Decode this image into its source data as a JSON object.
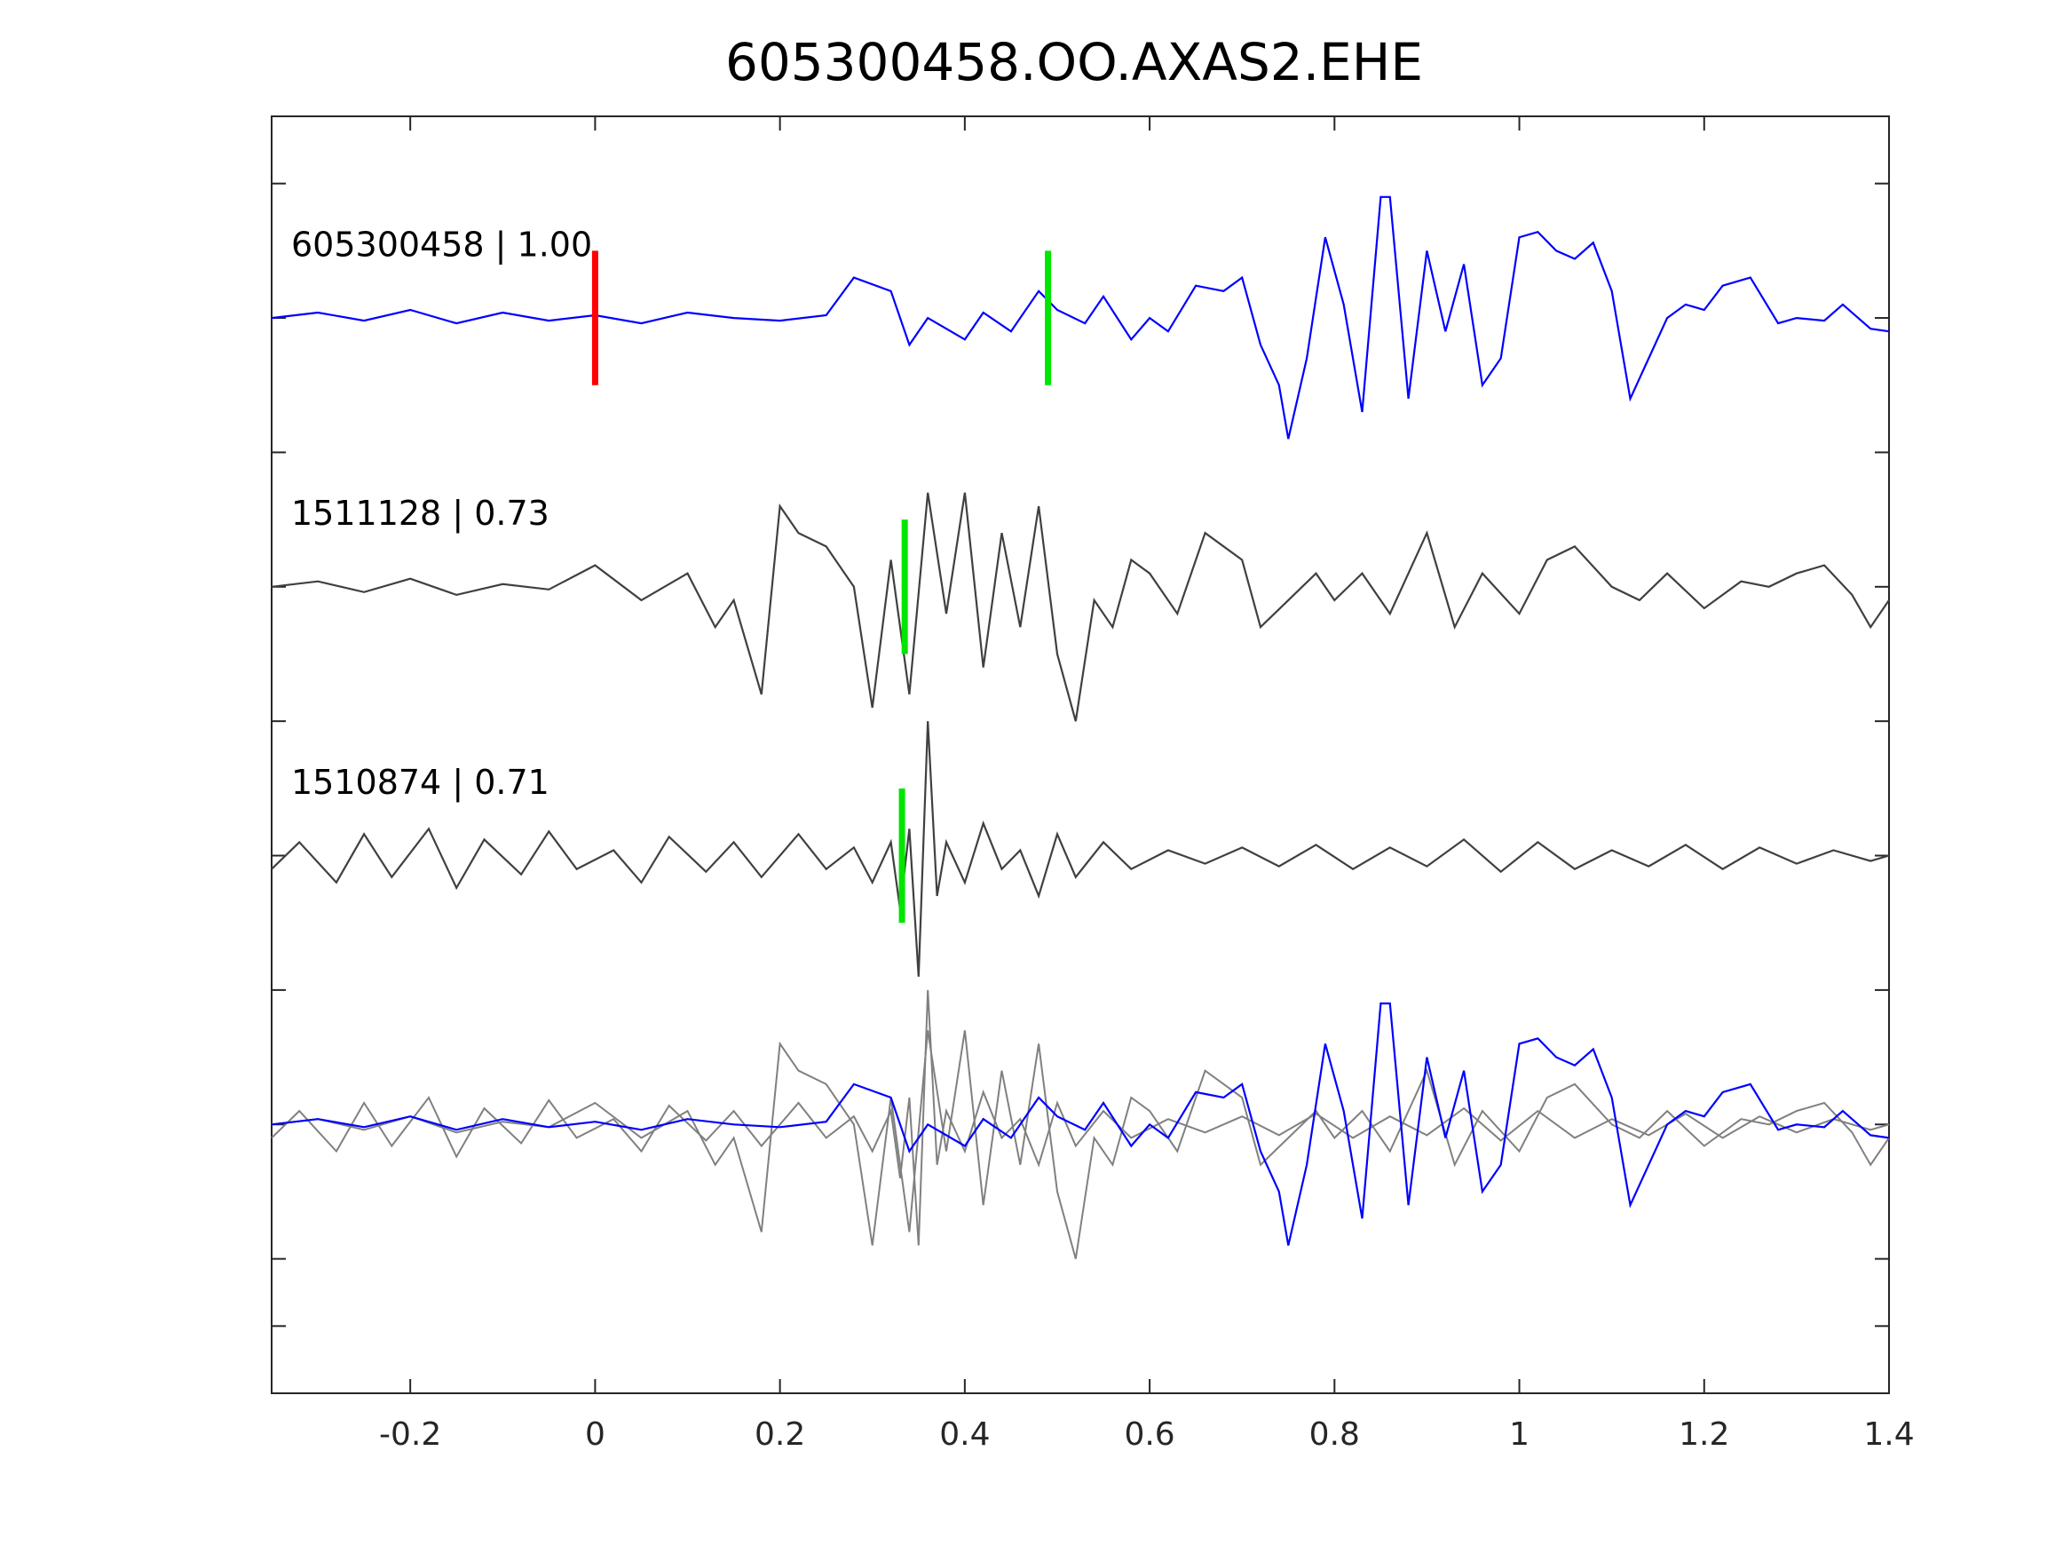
{
  "chart_data": {
    "type": "line",
    "title": "605300458.OO.AXAS2.EHE",
    "xlabel": "",
    "ylabel": "",
    "xlim": [
      -0.35,
      1.4
    ],
    "ylim": [
      0,
      4.75
    ],
    "x_tick_labels": [
      "-0.2",
      "0",
      "0.2",
      "0.4",
      "0.6",
      "0.8",
      "1",
      "1.2",
      "1.4"
    ],
    "x_tick_values": [
      -0.2,
      0,
      0.2,
      0.4,
      0.6,
      0.8,
      1,
      1.2,
      1.4
    ],
    "y_tick_values": [
      0.25,
      0.5,
      1.0,
      1.5,
      2.0,
      2.5,
      3.0,
      3.5,
      4.0,
      4.5
    ],
    "grid": false,
    "colors": {
      "axis": "#262626",
      "reference": "#0000ff",
      "neighbor": "#404040",
      "overlay_neighbor": "#808080",
      "pick_reference": "#ff0000",
      "pick_neighbor": "#00e600"
    },
    "series": [
      {
        "name": "605300458 | 1.00",
        "offset": 4,
        "color": "#0000ff",
        "pick": 0.0,
        "neighbor_pick": 0.49,
        "x": [
          -0.35,
          -0.3,
          -0.25,
          -0.2,
          -0.15,
          -0.1,
          -0.05,
          0,
          0.05,
          0.1,
          0.15,
          0.2,
          0.25,
          0.28,
          0.32,
          0.34,
          0.36,
          0.4,
          0.42,
          0.45,
          0.48,
          0.5,
          0.53,
          0.55,
          0.58,
          0.6,
          0.62,
          0.65,
          0.68,
          0.7,
          0.72,
          0.74,
          0.75,
          0.77,
          0.79,
          0.81,
          0.83,
          0.85,
          0.86,
          0.88,
          0.9,
          0.92,
          0.94,
          0.96,
          0.98,
          1.0,
          1.02,
          1.04,
          1.06,
          1.08,
          1.1,
          1.12,
          1.14,
          1.16,
          1.18,
          1.2,
          1.22,
          1.25,
          1.28,
          1.3,
          1.33,
          1.35,
          1.38,
          1.4
        ],
        "y": [
          4.0,
          4.02,
          3.99,
          4.03,
          3.98,
          4.02,
          3.99,
          4.01,
          3.98,
          4.02,
          4.0,
          3.99,
          4.01,
          4.15,
          4.1,
          3.9,
          4.0,
          3.92,
          4.02,
          3.95,
          4.1,
          4.03,
          3.98,
          4.08,
          3.92,
          4.0,
          3.95,
          4.12,
          4.1,
          4.15,
          3.9,
          3.75,
          3.55,
          3.85,
          4.3,
          4.05,
          3.65,
          4.45,
          4.45,
          3.7,
          4.25,
          3.95,
          4.2,
          3.75,
          3.85,
          4.3,
          4.32,
          4.25,
          4.22,
          4.28,
          4.1,
          3.7,
          3.85,
          4.0,
          4.05,
          4.03,
          4.12,
          4.15,
          3.98,
          4.0,
          3.99,
          4.05,
          3.96,
          3.95
        ]
      },
      {
        "name": "1511128 | 0.73",
        "offset": 3,
        "color": "#404040",
        "pick": 0.335,
        "x": [
          -0.35,
          -0.3,
          -0.25,
          -0.2,
          -0.15,
          -0.1,
          -0.05,
          0,
          0.05,
          0.1,
          0.13,
          0.15,
          0.18,
          0.2,
          0.22,
          0.25,
          0.28,
          0.3,
          0.32,
          0.34,
          0.36,
          0.38,
          0.4,
          0.42,
          0.44,
          0.46,
          0.48,
          0.5,
          0.52,
          0.54,
          0.56,
          0.58,
          0.6,
          0.63,
          0.66,
          0.7,
          0.72,
          0.75,
          0.78,
          0.8,
          0.83,
          0.86,
          0.9,
          0.93,
          0.96,
          1.0,
          1.03,
          1.06,
          1.1,
          1.13,
          1.16,
          1.2,
          1.24,
          1.27,
          1.3,
          1.33,
          1.36,
          1.38,
          1.4
        ],
        "y": [
          3.0,
          3.02,
          2.98,
          3.03,
          2.97,
          3.01,
          2.99,
          3.08,
          2.95,
          3.05,
          2.85,
          2.95,
          2.6,
          3.3,
          3.2,
          3.15,
          3.0,
          2.55,
          3.1,
          2.6,
          3.35,
          2.9,
          3.35,
          2.7,
          3.2,
          2.85,
          3.3,
          2.75,
          2.5,
          2.95,
          2.85,
          3.1,
          3.05,
          2.9,
          3.2,
          3.1,
          2.85,
          2.95,
          3.05,
          2.95,
          3.05,
          2.9,
          3.2,
          2.85,
          3.05,
          2.9,
          3.1,
          3.15,
          3.0,
          2.95,
          3.05,
          2.92,
          3.02,
          3.0,
          3.05,
          3.08,
          2.97,
          2.85,
          2.95
        ]
      },
      {
        "name": "1510874 | 0.71",
        "offset": 2,
        "color": "#404040",
        "pick": 0.332,
        "x": [
          -0.35,
          -0.32,
          -0.28,
          -0.25,
          -0.22,
          -0.18,
          -0.15,
          -0.12,
          -0.08,
          -0.05,
          -0.02,
          0.02,
          0.05,
          0.08,
          0.12,
          0.15,
          0.18,
          0.22,
          0.25,
          0.28,
          0.3,
          0.32,
          0.33,
          0.34,
          0.35,
          0.36,
          0.37,
          0.38,
          0.4,
          0.42,
          0.44,
          0.46,
          0.48,
          0.5,
          0.52,
          0.55,
          0.58,
          0.62,
          0.66,
          0.7,
          0.74,
          0.78,
          0.82,
          0.86,
          0.9,
          0.94,
          0.98,
          1.02,
          1.06,
          1.1,
          1.14,
          1.18,
          1.22,
          1.26,
          1.3,
          1.34,
          1.38,
          1.4
        ],
        "y": [
          1.95,
          2.05,
          1.9,
          2.08,
          1.92,
          2.1,
          1.88,
          2.06,
          1.93,
          2.09,
          1.95,
          2.02,
          1.9,
          2.07,
          1.94,
          2.05,
          1.92,
          2.08,
          1.95,
          2.03,
          1.9,
          2.05,
          1.8,
          2.1,
          1.55,
          2.5,
          1.85,
          2.05,
          1.9,
          2.12,
          1.95,
          2.02,
          1.85,
          2.08,
          1.92,
          2.05,
          1.95,
          2.02,
          1.97,
          2.03,
          1.96,
          2.04,
          1.95,
          2.03,
          1.96,
          2.06,
          1.94,
          2.05,
          1.95,
          2.02,
          1.96,
          2.04,
          1.95,
          2.03,
          1.97,
          2.02,
          1.98,
          2.0
        ]
      }
    ],
    "overlay": {
      "offset": 1,
      "note_series": [
        "605300458 | 1.00",
        "1511128 | 0.73",
        "1510874 | 0.71"
      ]
    }
  }
}
